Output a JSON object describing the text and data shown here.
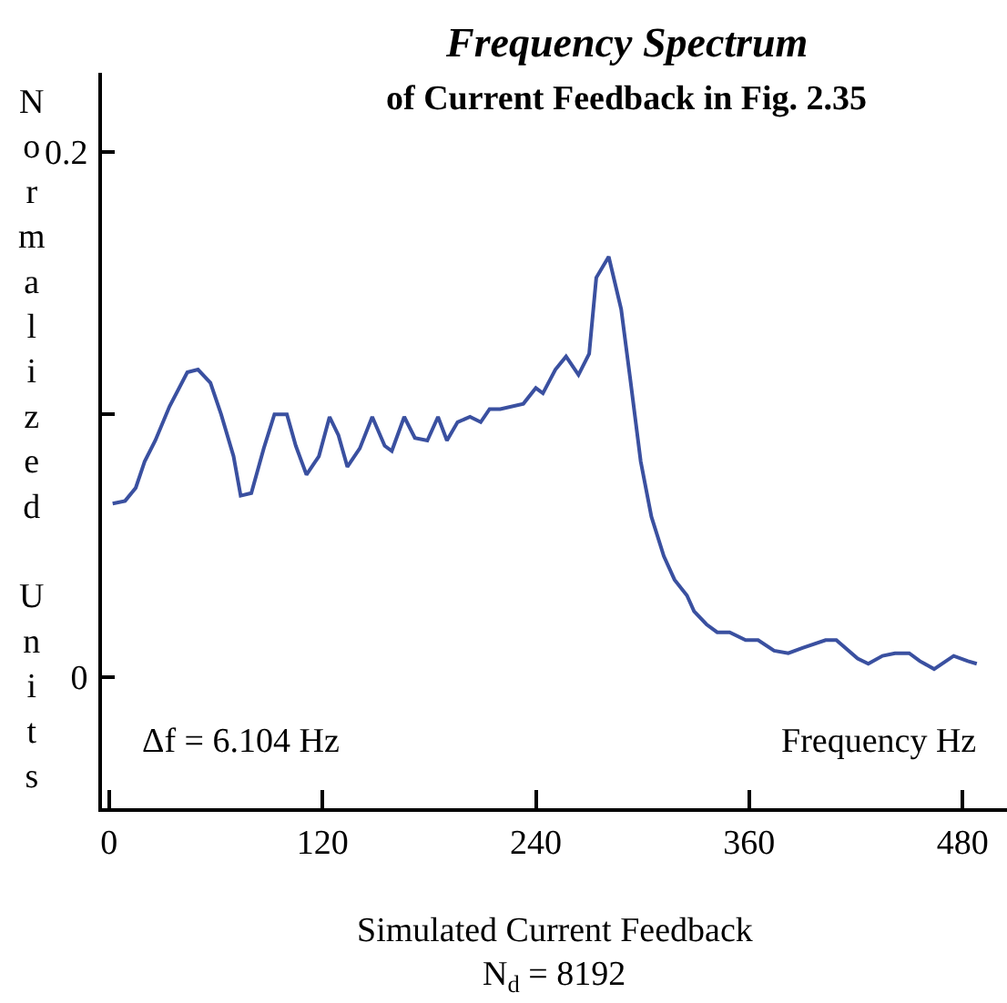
{
  "chart_data": {
    "type": "line",
    "title": "Frequency Spectrum",
    "subtitle": "of Current Feedback in Fig. 2.35",
    "xlabel": "Frequency Hz",
    "ylabel": "Normalized Units",
    "annotations": [
      "Δf = 6.104 Hz",
      "Simulated Current Feedback",
      "N$_{d}$ = 8192"
    ],
    "x": [
      2,
      9,
      15,
      20,
      26,
      34,
      44,
      50,
      57,
      63,
      70,
      74,
      80,
      87,
      93,
      100,
      105,
      111,
      118,
      124,
      129,
      134,
      141,
      148,
      155,
      159,
      166,
      172,
      179,
      185,
      190,
      196,
      203,
      209,
      214,
      220,
      233,
      240,
      244,
      251,
      257,
      264,
      270,
      274,
      281,
      288,
      293,
      299,
      305,
      312,
      318,
      325,
      329,
      336,
      342,
      349,
      358,
      365,
      374,
      382,
      390,
      403,
      409,
      421,
      427,
      435,
      442,
      450,
      456,
      464,
      475,
      483,
      488
    ],
    "series": [
      {
        "color": "#3a50a0",
        "values": [
          0.066,
          0.067,
          0.072,
          0.082,
          0.09,
          0.103,
          0.116,
          0.117,
          0.112,
          0.1,
          0.084,
          0.069,
          0.07,
          0.087,
          0.1,
          0.1,
          0.088,
          0.077,
          0.084,
          0.099,
          0.092,
          0.08,
          0.087,
          0.099,
          0.088,
          0.086,
          0.099,
          0.091,
          0.09,
          0.099,
          0.09,
          0.097,
          0.099,
          0.097,
          0.102,
          0.102,
          0.104,
          0.11,
          0.108,
          0.117,
          0.122,
          0.115,
          0.123,
          0.152,
          0.16,
          0.14,
          0.114,
          0.082,
          0.061,
          0.046,
          0.037,
          0.031,
          0.025,
          0.02,
          0.017,
          0.017,
          0.014,
          0.014,
          0.01,
          0.009,
          0.011,
          0.014,
          0.014,
          0.007,
          0.005,
          0.008,
          0.009,
          0.009,
          0.006,
          0.003,
          0.008,
          0.006,
          0.005
        ]
      }
    ],
    "xlim": [
      -4,
      505
    ],
    "xticks": [
      0,
      120,
      240,
      360,
      480
    ],
    "ylim": [
      -0.05,
      0.23
    ],
    "yticks": [
      0,
      {
        "value": 0.1,
        "label": null
      },
      0.2
    ],
    "grid": false,
    "marker": "none",
    "line_style": "solid"
  }
}
